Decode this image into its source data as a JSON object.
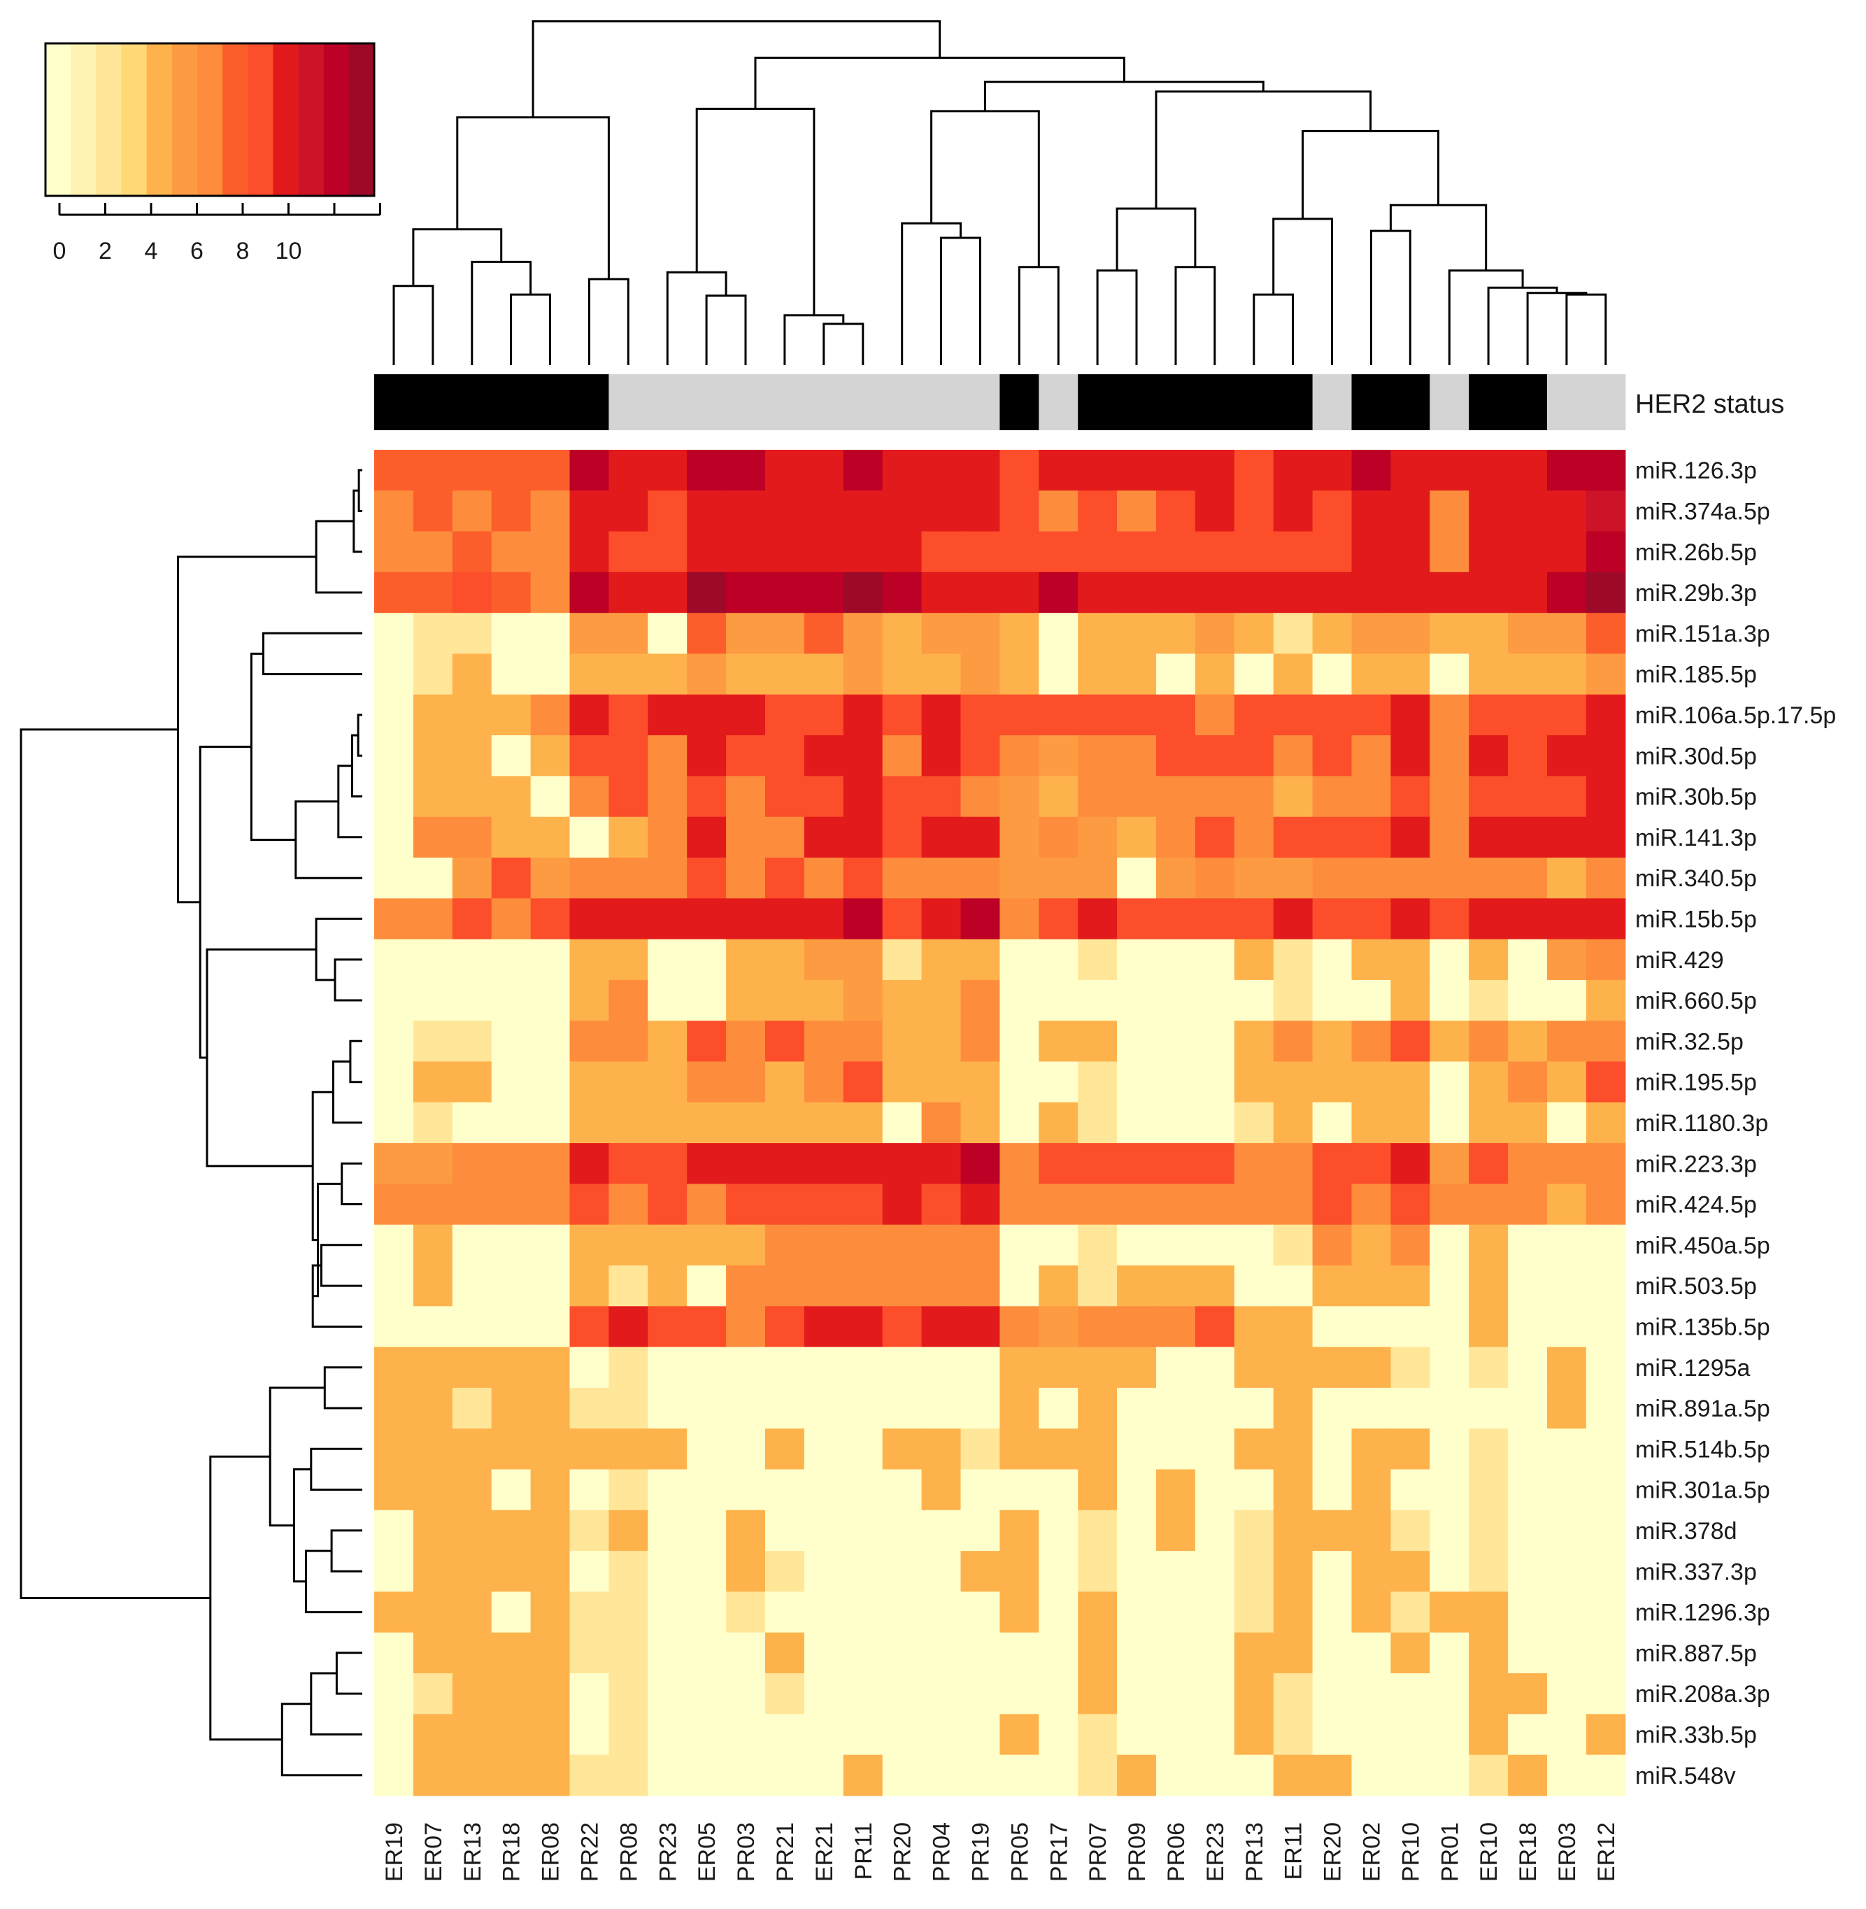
{
  "chart_data": {
    "type": "heatmap",
    "title": "",
    "columns": [
      "ER19",
      "ER07",
      "ER13",
      "PR18",
      "ER08",
      "PR22",
      "PR08",
      "PR23",
      "ER05",
      "PR03",
      "PR21",
      "ER21",
      "PR11",
      "PR20",
      "PR04",
      "PR19",
      "PR05",
      "PR17",
      "PR07",
      "PR09",
      "PR06",
      "ER23",
      "PR13",
      "ER11",
      "ER20",
      "ER02",
      "PR10",
      "PR01",
      "ER10",
      "ER18",
      "ER03",
      "ER12"
    ],
    "rows": [
      "miR.126.3p",
      "miR.374a.5p",
      "miR.26b.5p",
      "miR.29b.3p",
      "miR.151a.3p",
      "miR.185.5p",
      "miR.106a.5p.17.5p",
      "miR.30d.5p",
      "miR.30b.5p",
      "miR.141.3p",
      "miR.340.5p",
      "miR.15b.5p",
      "miR.429",
      "miR.660.5p",
      "miR.32.5p",
      "miR.195.5p",
      "miR.1180.3p",
      "miR.223.3p",
      "miR.424.5p",
      "miR.450a.5p",
      "miR.503.5p",
      "miR.135b.5p",
      "miR.1295a",
      "miR.891a.5p",
      "miR.514b.5p",
      "miR.301a.5p",
      "miR.378d",
      "miR.337.3p",
      "miR.1296.3p",
      "miR.887.5p",
      "miR.208a.3p",
      "miR.33b.5p",
      "miR.548v"
    ],
    "annotation": {
      "label": "HER2 status",
      "values": [
        "pos",
        "pos",
        "pos",
        "pos",
        "pos",
        "pos",
        "neg",
        "neg",
        "neg",
        "neg",
        "neg",
        "neg",
        "neg",
        "neg",
        "neg",
        "neg",
        "pos",
        "neg",
        "pos",
        "pos",
        "pos",
        "pos",
        "pos",
        "pos",
        "neg",
        "pos",
        "pos",
        "neg",
        "pos",
        "pos",
        "neg",
        "neg"
      ],
      "colors": {
        "pos": "#000000",
        "neg": "#d4d4d4"
      }
    },
    "values": [
      [
        7,
        7,
        7,
        7,
        7,
        11,
        9,
        9,
        11,
        11,
        9,
        9,
        11,
        9,
        9,
        9,
        8,
        9,
        9,
        9,
        9,
        9,
        8,
        9,
        9,
        11,
        9,
        9,
        9,
        9,
        11,
        11
      ],
      [
        6,
        7,
        6,
        7,
        6,
        9,
        9,
        8,
        9,
        9,
        9,
        9,
        9,
        9,
        9,
        9,
        8,
        6,
        8,
        6,
        8,
        9,
        8,
        9,
        8,
        9,
        9,
        6,
        9,
        9,
        9,
        10
      ],
      [
        6,
        6,
        7,
        6,
        6,
        9,
        8,
        8,
        9,
        9,
        9,
        9,
        9,
        9,
        8,
        8,
        8,
        8,
        8,
        8,
        8,
        8,
        8,
        8,
        8,
        9,
        9,
        6,
        9,
        9,
        9,
        11
      ],
      [
        7,
        7,
        8,
        7,
        6,
        11,
        9,
        9,
        12,
        11,
        11,
        11,
        12,
        11,
        9,
        9,
        9,
        11,
        9,
        9,
        9,
        9,
        9,
        9,
        9,
        9,
        9,
        9,
        9,
        9,
        11,
        12
      ],
      [
        0,
        2,
        2,
        0,
        0,
        5,
        5,
        0,
        7,
        5,
        5,
        7,
        5,
        4,
        5,
        5,
        4,
        0,
        4,
        4,
        4,
        5,
        4,
        2,
        4,
        5,
        5,
        4,
        4,
        5,
        5,
        7
      ],
      [
        0,
        2,
        4,
        0,
        0,
        4,
        4,
        4,
        5,
        4,
        4,
        4,
        5,
        4,
        4,
        5,
        4,
        0,
        4,
        4,
        0,
        4,
        0,
        4,
        0,
        4,
        4,
        0,
        4,
        4,
        4,
        5
      ],
      [
        0,
        4,
        4,
        4,
        6,
        9,
        8,
        9,
        9,
        9,
        8,
        8,
        9,
        8,
        9,
        8,
        8,
        8,
        8,
        8,
        8,
        6,
        8,
        8,
        8,
        8,
        9,
        6,
        8,
        8,
        8,
        9
      ],
      [
        0,
        4,
        4,
        0,
        4,
        8,
        8,
        6,
        9,
        8,
        8,
        9,
        9,
        6,
        9,
        8,
        6,
        5,
        6,
        6,
        8,
        8,
        8,
        6,
        8,
        6,
        9,
        6,
        9,
        8,
        9,
        9
      ],
      [
        0,
        4,
        4,
        4,
        0,
        6,
        8,
        6,
        8,
        6,
        8,
        8,
        9,
        8,
        8,
        6,
        5,
        4,
        6,
        6,
        6,
        6,
        6,
        4,
        6,
        6,
        8,
        6,
        8,
        8,
        8,
        9
      ],
      [
        0,
        6,
        6,
        4,
        4,
        0,
        4,
        6,
        9,
        6,
        6,
        9,
        9,
        8,
        9,
        9,
        5,
        6,
        5,
        4,
        6,
        8,
        6,
        8,
        8,
        8,
        9,
        6,
        9,
        9,
        9,
        9
      ],
      [
        0,
        0,
        5,
        8,
        5,
        6,
        6,
        6,
        8,
        6,
        8,
        6,
        8,
        6,
        6,
        6,
        5,
        5,
        5,
        0,
        5,
        6,
        5,
        5,
        6,
        6,
        6,
        6,
        6,
        6,
        4,
        6
      ],
      [
        6,
        6,
        8,
        6,
        8,
        9,
        9,
        9,
        9,
        9,
        9,
        9,
        11,
        8,
        9,
        11,
        6,
        8,
        9,
        8,
        8,
        8,
        8,
        9,
        8,
        8,
        9,
        8,
        9,
        9,
        9,
        9
      ],
      [
        0,
        0,
        0,
        0,
        0,
        4,
        4,
        0,
        0,
        4,
        4,
        5,
        5,
        2,
        4,
        4,
        0,
        0,
        2,
        0,
        0,
        0,
        4,
        2,
        0,
        4,
        4,
        0,
        4,
        0,
        5,
        6
      ],
      [
        0,
        0,
        0,
        0,
        0,
        4,
        6,
        0,
        0,
        4,
        4,
        4,
        5,
        4,
        4,
        6,
        0,
        0,
        0,
        0,
        0,
        0,
        0,
        2,
        0,
        0,
        4,
        0,
        2,
        0,
        0,
        4
      ],
      [
        0,
        2,
        2,
        0,
        0,
        6,
        6,
        4,
        8,
        6,
        8,
        6,
        6,
        4,
        4,
        6,
        0,
        4,
        4,
        0,
        0,
        0,
        4,
        6,
        4,
        6,
        8,
        4,
        6,
        4,
        6,
        6
      ],
      [
        0,
        4,
        4,
        0,
        0,
        4,
        4,
        4,
        6,
        6,
        4,
        6,
        8,
        4,
        4,
        4,
        0,
        0,
        2,
        0,
        0,
        0,
        4,
        4,
        4,
        4,
        4,
        0,
        4,
        6,
        4,
        8
      ],
      [
        0,
        2,
        0,
        0,
        0,
        4,
        4,
        4,
        4,
        4,
        4,
        4,
        4,
        0,
        6,
        4,
        0,
        4,
        2,
        0,
        0,
        0,
        2,
        4,
        0,
        4,
        4,
        0,
        4,
        4,
        0,
        4
      ],
      [
        5,
        5,
        6,
        6,
        6,
        9,
        8,
        8,
        9,
        9,
        9,
        9,
        9,
        9,
        9,
        11,
        6,
        8,
        8,
        8,
        8,
        8,
        6,
        6,
        8,
        8,
        9,
        5,
        8,
        6,
        6,
        6
      ],
      [
        6,
        6,
        6,
        6,
        6,
        8,
        6,
        8,
        6,
        8,
        8,
        8,
        8,
        9,
        8,
        9,
        6,
        6,
        6,
        6,
        6,
        6,
        6,
        6,
        8,
        6,
        8,
        6,
        6,
        6,
        4,
        6
      ],
      [
        0,
        4,
        0,
        0,
        0,
        4,
        4,
        4,
        4,
        4,
        6,
        6,
        6,
        6,
        6,
        6,
        0,
        0,
        2,
        0,
        0,
        0,
        0,
        2,
        6,
        4,
        6,
        0,
        4,
        0,
        0,
        0
      ],
      [
        0,
        4,
        0,
        0,
        0,
        4,
        2,
        4,
        0,
        6,
        6,
        6,
        6,
        6,
        6,
        6,
        0,
        4,
        2,
        4,
        4,
        4,
        0,
        0,
        4,
        4,
        4,
        0,
        4,
        0,
        0,
        0
      ],
      [
        0,
        0,
        0,
        0,
        0,
        8,
        9,
        8,
        8,
        6,
        8,
        9,
        9,
        8,
        9,
        9,
        6,
        5,
        6,
        6,
        6,
        8,
        4,
        4,
        0,
        0,
        0,
        0,
        4,
        0,
        0,
        0
      ],
      [
        4,
        4,
        4,
        4,
        4,
        0,
        2,
        0,
        0,
        0,
        0,
        0,
        0,
        0,
        0,
        0,
        4,
        4,
        4,
        4,
        0,
        0,
        4,
        4,
        4,
        4,
        2,
        0,
        2,
        0,
        4,
        0
      ],
      [
        4,
        4,
        2,
        4,
        4,
        2,
        2,
        0,
        0,
        0,
        0,
        0,
        0,
        0,
        0,
        0,
        4,
        0,
        4,
        0,
        0,
        0,
        0,
        4,
        0,
        0,
        0,
        0,
        0,
        0,
        4,
        0
      ],
      [
        4,
        4,
        4,
        4,
        4,
        4,
        4,
        4,
        0,
        0,
        4,
        0,
        0,
        4,
        4,
        2,
        4,
        4,
        4,
        0,
        0,
        0,
        4,
        4,
        0,
        4,
        4,
        0,
        2,
        0,
        0,
        0
      ],
      [
        4,
        4,
        4,
        0,
        4,
        0,
        2,
        0,
        0,
        0,
        0,
        0,
        0,
        0,
        4,
        0,
        0,
        0,
        4,
        0,
        4,
        0,
        0,
        4,
        0,
        4,
        0,
        0,
        2,
        0,
        0,
        0
      ],
      [
        0,
        4,
        4,
        4,
        4,
        2,
        4,
        0,
        0,
        4,
        0,
        0,
        0,
        0,
        0,
        0,
        4,
        0,
        2,
        0,
        4,
        0,
        2,
        4,
        4,
        4,
        2,
        0,
        2,
        0,
        0,
        0
      ],
      [
        0,
        4,
        4,
        4,
        4,
        0,
        2,
        0,
        0,
        4,
        2,
        0,
        0,
        0,
        0,
        4,
        4,
        0,
        2,
        0,
        0,
        0,
        2,
        4,
        0,
        4,
        4,
        0,
        2,
        0,
        0,
        0
      ],
      [
        4,
        4,
        4,
        0,
        4,
        2,
        2,
        0,
        0,
        2,
        0,
        0,
        0,
        0,
        0,
        0,
        4,
        0,
        4,
        0,
        0,
        0,
        2,
        4,
        0,
        4,
        2,
        4,
        4,
        0,
        0,
        0
      ],
      [
        0,
        4,
        4,
        4,
        4,
        2,
        2,
        0,
        0,
        0,
        4,
        0,
        0,
        0,
        0,
        0,
        0,
        0,
        4,
        0,
        0,
        0,
        4,
        4,
        0,
        0,
        4,
        0,
        4,
        0,
        0,
        0
      ],
      [
        0,
        2,
        4,
        4,
        4,
        0,
        2,
        0,
        0,
        0,
        2,
        0,
        0,
        0,
        0,
        0,
        0,
        0,
        4,
        0,
        0,
        0,
        4,
        2,
        0,
        0,
        0,
        0,
        4,
        4,
        0,
        0
      ],
      [
        0,
        4,
        4,
        4,
        4,
        0,
        2,
        0,
        0,
        0,
        0,
        0,
        0,
        0,
        0,
        0,
        4,
        0,
        2,
        0,
        0,
        0,
        4,
        2,
        0,
        0,
        0,
        0,
        4,
        0,
        0,
        4
      ],
      [
        0,
        4,
        4,
        4,
        4,
        2,
        2,
        0,
        0,
        0,
        0,
        0,
        4,
        0,
        0,
        0,
        0,
        0,
        2,
        4,
        0,
        0,
        0,
        4,
        4,
        0,
        0,
        0,
        2,
        4,
        0,
        0
      ]
    ],
    "color_scale": {
      "min": 0,
      "max": 12,
      "colors": [
        "#ffffcc",
        "#fff3b3",
        "#ffe699",
        "#fed976",
        "#feb24c",
        "#fd9b42",
        "#fd8d3c",
        "#fc5e2b",
        "#fc4e2a",
        "#e31a1c",
        "#cc1328",
        "#bd0026",
        "#9d0a29"
      ],
      "legend_ticks": [
        "0",
        "2",
        "4",
        "6",
        "8",
        "10"
      ]
    },
    "dendrograms": {
      "columns": "hierarchical clustering (top)",
      "rows": "hierarchical clustering (left)"
    }
  }
}
